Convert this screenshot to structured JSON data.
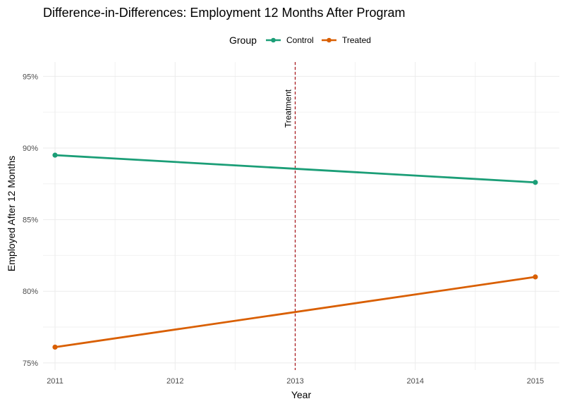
{
  "chart_data": {
    "type": "line",
    "title": "Difference-in-Differences: Employment 12 Months After Program",
    "xlabel": "Year",
    "ylabel": "Employed After 12 Months",
    "legend": {
      "title": "Group",
      "placement": "top"
    },
    "x": [
      2011,
      2015
    ],
    "x_ticks": [
      "2011",
      "2012",
      "2013",
      "2014",
      "2015"
    ],
    "xlim": [
      2010.9,
      2015.2
    ],
    "y_ticks": [
      "75%",
      "80%",
      "85%",
      "90%",
      "95%"
    ],
    "ylim": [
      0.745,
      0.96
    ],
    "grid": true,
    "series": [
      {
        "name": "Control",
        "color": "#1b9e77",
        "values": [
          0.895,
          0.876
        ]
      },
      {
        "name": "Treated",
        "color": "#d95f02",
        "values": [
          0.761,
          0.81
        ]
      }
    ],
    "vline": {
      "x": 2013,
      "label": "Treatment",
      "color": "#a50f15",
      "style": "dashed"
    }
  }
}
